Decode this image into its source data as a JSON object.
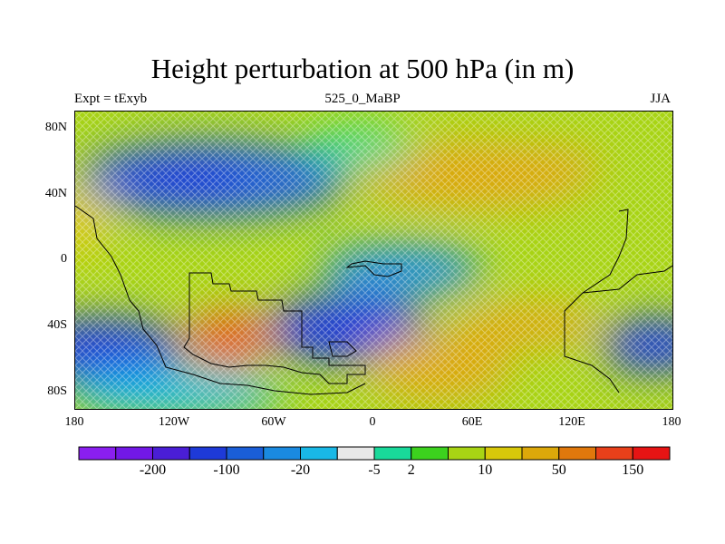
{
  "chart_data": {
    "type": "heatmap",
    "title": "Height perturbation at 500 hPa (in m)",
    "subtitle_left": "Expt = tExyb",
    "subtitle_center": "525_0_MaBP",
    "subtitle_right": "JJA",
    "x_ticks": [
      "180",
      "120W",
      "60W",
      "0",
      "60E",
      "120E",
      "180"
    ],
    "x_tick_values": [
      -180,
      -120,
      -60,
      0,
      60,
      120,
      180
    ],
    "y_ticks": [
      "80N",
      "40N",
      "0",
      "40S",
      "80S"
    ],
    "y_tick_values": [
      80,
      40,
      0,
      -40,
      -80
    ],
    "xlim": [
      -180,
      180
    ],
    "ylim": [
      -90,
      90
    ],
    "colorbar": {
      "colors": [
        "#8a1ff0",
        "#7218e6",
        "#4a1ed6",
        "#1e3ad8",
        "#1a5ed8",
        "#1a8ae0",
        "#19b8e6",
        "#e8e8e8",
        "#19d99a",
        "#3cd21e",
        "#a8d414",
        "#d8c80a",
        "#dca80a",
        "#e0780c",
        "#e8401a",
        "#e61414"
      ],
      "tick_labels": [
        "-200",
        "-100",
        "-20",
        "-5",
        "2",
        "10",
        "50",
        "150"
      ],
      "tick_after_box_index": [
        1,
        3,
        5,
        7,
        8,
        10,
        12,
        14
      ]
    },
    "field_features": [
      {
        "lon": -130,
        "lat": 48,
        "value": -30
      },
      {
        "lon": -90,
        "lat": 50,
        "value": -20
      },
      {
        "lon": 20,
        "lat": 52,
        "value": 20
      },
      {
        "lon": 80,
        "lat": 52,
        "value": 20
      },
      {
        "lon": -80,
        "lat": -50,
        "value": 150
      },
      {
        "lon": -150,
        "lat": -55,
        "value": -100
      },
      {
        "lon": -30,
        "lat": -38,
        "value": -100
      },
      {
        "lon": 170,
        "lat": -50,
        "value": -150
      },
      {
        "lon": 30,
        "lat": -65,
        "value": 50
      },
      {
        "lon": 100,
        "lat": -38,
        "value": 50
      },
      {
        "lon": -175,
        "lat": 20,
        "value": 20
      },
      {
        "lon": 50,
        "lat": -5,
        "value": -5
      }
    ]
  }
}
